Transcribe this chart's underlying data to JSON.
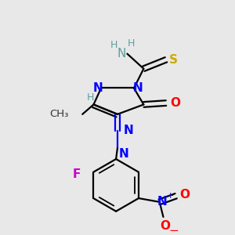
{
  "bg_color": "#e8e8e8",
  "atom_colors": {
    "N": "#0000ff",
    "O": "#ff0000",
    "S": "#ccaa00",
    "F": "#cc00cc",
    "C": "#000000",
    "H": "#5f9ea0"
  },
  "lw": 1.6,
  "fs": 11,
  "fs_small": 9
}
